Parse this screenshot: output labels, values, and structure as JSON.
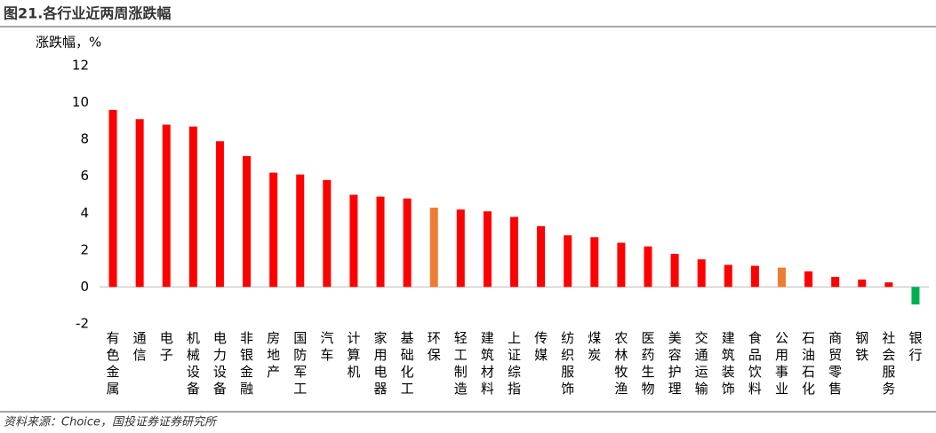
{
  "chart_data": {
    "type": "bar",
    "title": "图21.各行业近两周涨跌幅",
    "y_label": "涨跌幅，%",
    "source": "资料来源：Choice，国投证券证券研究所",
    "categories": [
      "有色金属",
      "通信",
      "电子",
      "机械设备",
      "电力设备",
      "非银金融",
      "房地产",
      "国防军工",
      "汽车",
      "计算机",
      "家用电器",
      "基础化工",
      "环保",
      "轻工制造",
      "建筑材料",
      "上证综指",
      "传媒",
      "纺织服饰",
      "煤炭",
      "农林牧渔",
      "医药生物",
      "美容护理",
      "交通运输",
      "建筑装饰",
      "食品饮料",
      "公用事业",
      "石油石化",
      "商贸零售",
      "钢铁",
      "社会服务",
      "银行"
    ],
    "values": [
      9.6,
      9.1,
      8.8,
      8.7,
      7.9,
      7.1,
      6.2,
      6.1,
      5.8,
      5.0,
      4.9,
      4.8,
      4.3,
      4.2,
      4.1,
      3.8,
      3.3,
      2.8,
      2.7,
      2.4,
      2.2,
      1.8,
      1.5,
      1.2,
      1.15,
      1.05,
      0.85,
      0.55,
      0.4,
      0.25,
      -0.95
    ],
    "colors": [
      "#ff0000",
      "#ff0000",
      "#ff0000",
      "#ff0000",
      "#ff0000",
      "#ff0000",
      "#ff0000",
      "#ff0000",
      "#ff0000",
      "#ff0000",
      "#ff0000",
      "#ff0000",
      "#ed7d31",
      "#ff0000",
      "#ff0000",
      "#ff0000",
      "#ff0000",
      "#ff0000",
      "#ff0000",
      "#ff0000",
      "#ff0000",
      "#ff0000",
      "#ff0000",
      "#ff0000",
      "#ff0000",
      "#ed7d31",
      "#ff0000",
      "#ff0000",
      "#ff0000",
      "#ff0000",
      "#00b050"
    ],
    "ylim": [
      -2,
      12
    ],
    "yticks": [
      -2,
      0,
      2,
      4,
      6,
      8,
      10,
      12
    ],
    "grid": false
  }
}
